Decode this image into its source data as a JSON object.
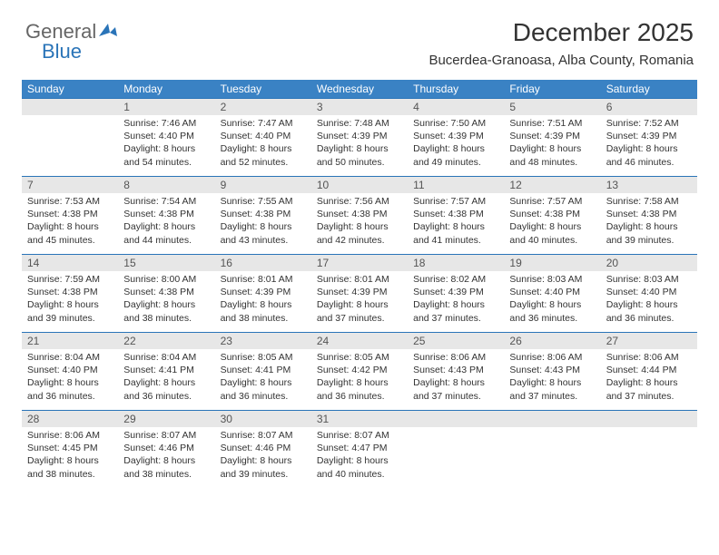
{
  "logo": {
    "part1": "General",
    "part2": "Blue"
  },
  "header": {
    "title": "December 2025",
    "location": "Bucerdea-Granoasa, Alba County, Romania"
  },
  "weekdays": [
    "Sunday",
    "Monday",
    "Tuesday",
    "Wednesday",
    "Thursday",
    "Friday",
    "Saturday"
  ],
  "style": {
    "header_bg": "#3a82c4",
    "header_fg": "#ffffff",
    "daynum_bg": "#e7e7e7",
    "daynum_border": "#2a74b8"
  },
  "weeks": [
    [
      {
        "n": "",
        "sr": "",
        "ss": "",
        "dl": ""
      },
      {
        "n": "1",
        "sr": "Sunrise: 7:46 AM",
        "ss": "Sunset: 4:40 PM",
        "dl": "Daylight: 8 hours and 54 minutes."
      },
      {
        "n": "2",
        "sr": "Sunrise: 7:47 AM",
        "ss": "Sunset: 4:40 PM",
        "dl": "Daylight: 8 hours and 52 minutes."
      },
      {
        "n": "3",
        "sr": "Sunrise: 7:48 AM",
        "ss": "Sunset: 4:39 PM",
        "dl": "Daylight: 8 hours and 50 minutes."
      },
      {
        "n": "4",
        "sr": "Sunrise: 7:50 AM",
        "ss": "Sunset: 4:39 PM",
        "dl": "Daylight: 8 hours and 49 minutes."
      },
      {
        "n": "5",
        "sr": "Sunrise: 7:51 AM",
        "ss": "Sunset: 4:39 PM",
        "dl": "Daylight: 8 hours and 48 minutes."
      },
      {
        "n": "6",
        "sr": "Sunrise: 7:52 AM",
        "ss": "Sunset: 4:39 PM",
        "dl": "Daylight: 8 hours and 46 minutes."
      }
    ],
    [
      {
        "n": "7",
        "sr": "Sunrise: 7:53 AM",
        "ss": "Sunset: 4:38 PM",
        "dl": "Daylight: 8 hours and 45 minutes."
      },
      {
        "n": "8",
        "sr": "Sunrise: 7:54 AM",
        "ss": "Sunset: 4:38 PM",
        "dl": "Daylight: 8 hours and 44 minutes."
      },
      {
        "n": "9",
        "sr": "Sunrise: 7:55 AM",
        "ss": "Sunset: 4:38 PM",
        "dl": "Daylight: 8 hours and 43 minutes."
      },
      {
        "n": "10",
        "sr": "Sunrise: 7:56 AM",
        "ss": "Sunset: 4:38 PM",
        "dl": "Daylight: 8 hours and 42 minutes."
      },
      {
        "n": "11",
        "sr": "Sunrise: 7:57 AM",
        "ss": "Sunset: 4:38 PM",
        "dl": "Daylight: 8 hours and 41 minutes."
      },
      {
        "n": "12",
        "sr": "Sunrise: 7:57 AM",
        "ss": "Sunset: 4:38 PM",
        "dl": "Daylight: 8 hours and 40 minutes."
      },
      {
        "n": "13",
        "sr": "Sunrise: 7:58 AM",
        "ss": "Sunset: 4:38 PM",
        "dl": "Daylight: 8 hours and 39 minutes."
      }
    ],
    [
      {
        "n": "14",
        "sr": "Sunrise: 7:59 AM",
        "ss": "Sunset: 4:38 PM",
        "dl": "Daylight: 8 hours and 39 minutes."
      },
      {
        "n": "15",
        "sr": "Sunrise: 8:00 AM",
        "ss": "Sunset: 4:38 PM",
        "dl": "Daylight: 8 hours and 38 minutes."
      },
      {
        "n": "16",
        "sr": "Sunrise: 8:01 AM",
        "ss": "Sunset: 4:39 PM",
        "dl": "Daylight: 8 hours and 38 minutes."
      },
      {
        "n": "17",
        "sr": "Sunrise: 8:01 AM",
        "ss": "Sunset: 4:39 PM",
        "dl": "Daylight: 8 hours and 37 minutes."
      },
      {
        "n": "18",
        "sr": "Sunrise: 8:02 AM",
        "ss": "Sunset: 4:39 PM",
        "dl": "Daylight: 8 hours and 37 minutes."
      },
      {
        "n": "19",
        "sr": "Sunrise: 8:03 AM",
        "ss": "Sunset: 4:40 PM",
        "dl": "Daylight: 8 hours and 36 minutes."
      },
      {
        "n": "20",
        "sr": "Sunrise: 8:03 AM",
        "ss": "Sunset: 4:40 PM",
        "dl": "Daylight: 8 hours and 36 minutes."
      }
    ],
    [
      {
        "n": "21",
        "sr": "Sunrise: 8:04 AM",
        "ss": "Sunset: 4:40 PM",
        "dl": "Daylight: 8 hours and 36 minutes."
      },
      {
        "n": "22",
        "sr": "Sunrise: 8:04 AM",
        "ss": "Sunset: 4:41 PM",
        "dl": "Daylight: 8 hours and 36 minutes."
      },
      {
        "n": "23",
        "sr": "Sunrise: 8:05 AM",
        "ss": "Sunset: 4:41 PM",
        "dl": "Daylight: 8 hours and 36 minutes."
      },
      {
        "n": "24",
        "sr": "Sunrise: 8:05 AM",
        "ss": "Sunset: 4:42 PM",
        "dl": "Daylight: 8 hours and 36 minutes."
      },
      {
        "n": "25",
        "sr": "Sunrise: 8:06 AM",
        "ss": "Sunset: 4:43 PM",
        "dl": "Daylight: 8 hours and 37 minutes."
      },
      {
        "n": "26",
        "sr": "Sunrise: 8:06 AM",
        "ss": "Sunset: 4:43 PM",
        "dl": "Daylight: 8 hours and 37 minutes."
      },
      {
        "n": "27",
        "sr": "Sunrise: 8:06 AM",
        "ss": "Sunset: 4:44 PM",
        "dl": "Daylight: 8 hours and 37 minutes."
      }
    ],
    [
      {
        "n": "28",
        "sr": "Sunrise: 8:06 AM",
        "ss": "Sunset: 4:45 PM",
        "dl": "Daylight: 8 hours and 38 minutes."
      },
      {
        "n": "29",
        "sr": "Sunrise: 8:07 AM",
        "ss": "Sunset: 4:46 PM",
        "dl": "Daylight: 8 hours and 38 minutes."
      },
      {
        "n": "30",
        "sr": "Sunrise: 8:07 AM",
        "ss": "Sunset: 4:46 PM",
        "dl": "Daylight: 8 hours and 39 minutes."
      },
      {
        "n": "31",
        "sr": "Sunrise: 8:07 AM",
        "ss": "Sunset: 4:47 PM",
        "dl": "Daylight: 8 hours and 40 minutes."
      },
      {
        "n": "",
        "sr": "",
        "ss": "",
        "dl": ""
      },
      {
        "n": "",
        "sr": "",
        "ss": "",
        "dl": ""
      },
      {
        "n": "",
        "sr": "",
        "ss": "",
        "dl": ""
      }
    ]
  ]
}
